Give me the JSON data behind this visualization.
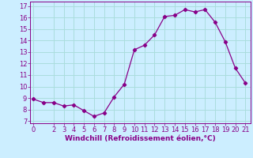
{
  "x": [
    0,
    1,
    2,
    3,
    4,
    5,
    6,
    7,
    8,
    9,
    10,
    11,
    12,
    13,
    14,
    15,
    16,
    17,
    18,
    19,
    20,
    21
  ],
  "y": [
    8.9,
    8.6,
    8.6,
    8.3,
    8.4,
    7.9,
    7.4,
    7.7,
    9.1,
    10.2,
    13.2,
    13.6,
    14.5,
    16.1,
    16.2,
    16.7,
    16.5,
    16.7,
    15.6,
    13.9,
    11.6,
    10.3
  ],
  "line_color": "#880088",
  "marker": "D",
  "marker_size": 2.2,
  "bg_color": "#cceeff",
  "grid_color": "#aadddd",
  "xlabel": "Windchill (Refroidissement éolien,°C)",
  "xlabel_color": "#880088",
  "xlabel_fontsize": 6.5,
  "tick_label_color": "#880088",
  "tick_fontsize": 6,
  "ylim": [
    6.8,
    17.4
  ],
  "yticks": [
    7,
    8,
    9,
    10,
    11,
    12,
    13,
    14,
    15,
    16,
    17
  ],
  "xticks": [
    0,
    2,
    3,
    4,
    5,
    6,
    7,
    8,
    9,
    10,
    11,
    12,
    13,
    14,
    15,
    16,
    17,
    18,
    19,
    20,
    21
  ],
  "xlim": [
    -0.3,
    21.5
  ]
}
